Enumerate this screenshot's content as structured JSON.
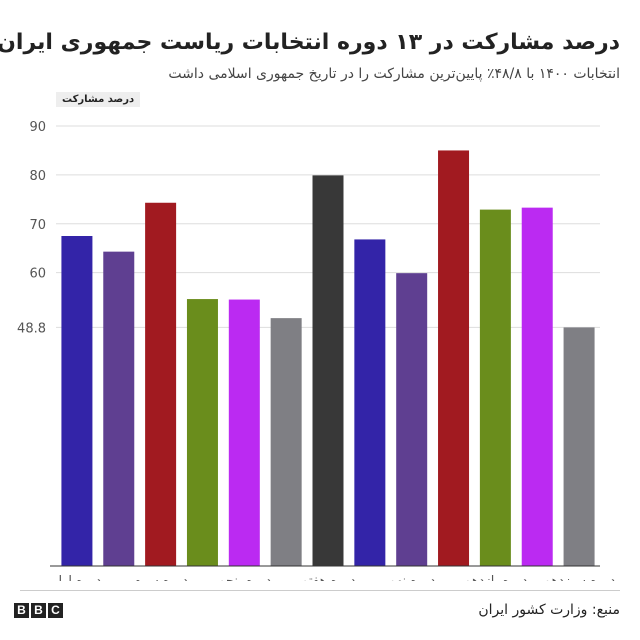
{
  "header": {
    "title": "درصد مشارکت در ۱۳ دوره انتخابات ریاست جمهوری ایران",
    "subtitle": "انتخابات ۱۴۰۰ با ۴۸/۸٪ پایین‌ترین مشارکت را در تاریخ جمهوری اسلامی داشت"
  },
  "footer": {
    "source": "منبع: وزارت کشور ایران",
    "logo_letters": [
      "B",
      "B",
      "C"
    ]
  },
  "chart_data": {
    "type": "bar",
    "ylabel": "درصد مشارکت",
    "ylim": [
      0,
      90
    ],
    "yticks": [
      "90",
      "80",
      "70",
      "60",
      "48.8"
    ],
    "ytick_values": [
      90,
      80,
      70,
      60,
      48.8
    ],
    "grid": true,
    "categories": [
      "دوره اول",
      "",
      "دوره سوم",
      "",
      "دوره پنجم",
      "",
      "دوره هفتم",
      "",
      "دوره نهم",
      "",
      "دوره یازدهم",
      "",
      "دوره سیزدهم"
    ],
    "values": [
      67.5,
      64.3,
      74.3,
      54.6,
      54.5,
      50.7,
      79.9,
      66.8,
      59.9,
      85.0,
      72.9,
      73.3,
      48.8
    ],
    "colors": [
      "#3324a8",
      "#5f3f91",
      "#a11a20",
      "#6a8d1c",
      "#bb2af2",
      "#7f7f84",
      "#383838",
      "#3324a8",
      "#5f3f91",
      "#a11a20",
      "#6a8d1c",
      "#bb2af2",
      "#7f7f84"
    ]
  }
}
